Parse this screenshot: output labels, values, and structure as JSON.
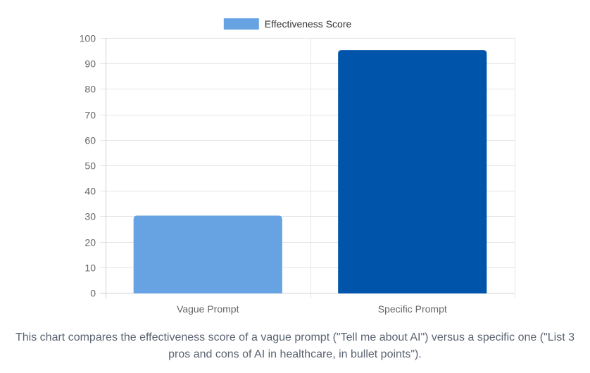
{
  "chart_data": {
    "type": "bar",
    "categories": [
      "Vague Prompt",
      "Specific Prompt"
    ],
    "series": [
      {
        "name": "Effectiveness Score",
        "values": [
          30,
          95
        ]
      }
    ],
    "bar_colors": [
      "#67a3e2",
      "#0055aa"
    ],
    "legend_color": "#67a3e2",
    "ylim": [
      0,
      100
    ],
    "yticks": [
      0,
      10,
      20,
      30,
      40,
      50,
      60,
      70,
      80,
      90,
      100
    ],
    "grid": true,
    "legend_position": "top-center",
    "title": "",
    "xlabel": "",
    "ylabel": ""
  },
  "caption": "This chart compares the effectiveness score of a vague prompt (\"Tell me about AI\") versus a specific one (\"List 3 pros and cons of AI in healthcare, in bullet points\")."
}
